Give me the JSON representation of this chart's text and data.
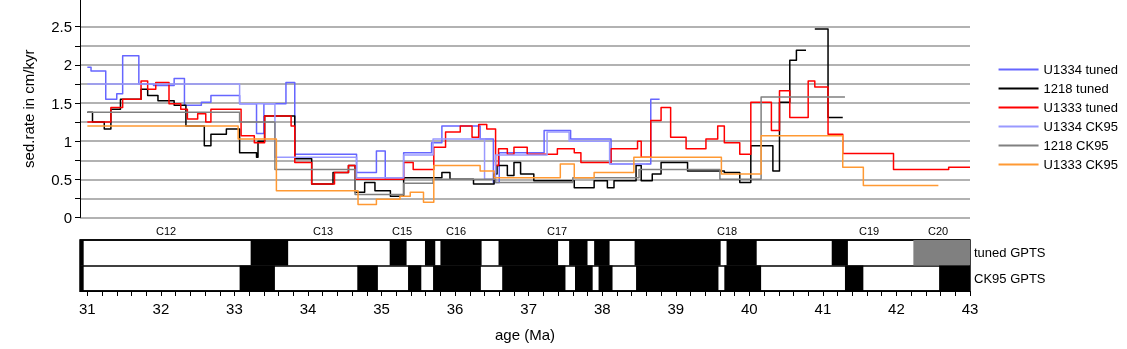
{
  "chart_data": [
    {
      "type": "step",
      "ylabel": "sed.rate in cm/kyr",
      "xlim": [
        30.9,
        43
      ],
      "ylim": [
        0,
        2.85
      ],
      "yticks": [
        0,
        {
          "value": 0.25,
          "label": null
        },
        0.5,
        {
          "value": 0.75,
          "label": null
        },
        1,
        {
          "value": 1.25,
          "label": null
        },
        1.5,
        {
          "value": 1.75,
          "label": null
        },
        2,
        {
          "value": 2.25,
          "label": null
        },
        2.5
      ],
      "grid": "y",
      "legend": "right",
      "tick_labels": "y",
      "series": [
        {
          "name": "U1334 tuned",
          "color": "#6666ff",
          "x": [
            31.0,
            31.05,
            31.25,
            31.4,
            31.48,
            31.7,
            31.9,
            32.18,
            32.32,
            32.55,
            32.68,
            33.07,
            33.3,
            33.4,
            33.7,
            33.82,
            34.66,
            34.93,
            35.05,
            35.3,
            35.68,
            35.82,
            36.34,
            36.52,
            36.6,
            37.21,
            37.57,
            38.12,
            38.66,
            38.78
          ],
          "values": [
            1.97,
            1.92,
            1.55,
            1.62,
            2.12,
            1.75,
            1.73,
            1.82,
            1.47,
            1.51,
            1.6,
            1.49,
            1.1,
            1.49,
            1.77,
            0.83,
            0.59,
            0.87,
            0.5,
            0.85,
            0.98,
            1.2,
            1.03,
            0.46,
            0.85,
            1.14,
            1.03,
            0.7,
            1.55,
            1.55
          ]
        },
        {
          "name": "1218 tuned",
          "color": "#000000",
          "x": [
            31.0,
            31.07,
            31.23,
            31.32,
            31.45,
            31.73,
            31.82,
            31.96,
            32.18,
            32.34,
            32.59,
            32.68,
            32.89,
            33.07,
            33.3,
            33.32,
            33.41,
            33.82,
            34.05,
            34.34,
            34.55,
            34.64,
            34.77,
            34.91,
            35.12,
            35.3,
            35.82,
            35.93,
            36.25,
            36.53,
            36.57,
            36.71,
            36.8,
            36.89,
            37.07,
            37.62,
            37.89,
            38.07,
            38.16,
            38.46,
            38.53,
            38.68,
            38.8,
            39.16,
            39.66,
            39.87,
            40.02,
            40.32,
            40.41,
            40.55,
            40.64,
            40.77,
            40.89,
            41.07,
            41.27
          ],
          "values": [
            1.38,
            1.25,
            1.16,
            1.42,
            1.55,
            1.68,
            1.6,
            1.53,
            1.47,
            1.2,
            0.94,
            1.09,
            1.16,
            0.85,
            0.79,
            1.0,
            1.33,
            0.77,
            0.44,
            0.59,
            0.68,
            0.33,
            0.46,
            0.35,
            0.28,
            0.52,
            0.59,
            0.5,
            0.44,
            0.57,
            0.68,
            0.55,
            0.72,
            0.57,
            0.48,
            0.39,
            0.48,
            0.39,
            0.48,
            0.68,
            0.48,
            0.57,
            0.72,
            0.61,
            0.59,
            0.46,
            0.94,
            0.61,
            1.51,
            2.06,
            2.19,
            null,
            2.47,
            1.31,
            1.31
          ]
        },
        {
          "name": "U1333 tuned",
          "color": "#ff0000",
          "x": [
            31.0,
            31.32,
            31.48,
            31.73,
            31.82,
            31.93,
            32.11,
            32.27,
            32.36,
            32.5,
            32.61,
            32.68,
            33.09,
            33.27,
            33.41,
            33.77,
            33.82,
            34.05,
            34.36,
            34.55,
            34.64,
            35.3,
            35.43,
            35.71,
            35.87,
            36.07,
            36.23,
            36.32,
            36.43,
            36.55,
            36.59,
            36.71,
            36.8,
            36.98,
            37.39,
            37.62,
            37.71,
            38.12,
            38.48,
            38.53,
            38.66,
            38.8,
            38.93,
            39.14,
            39.41,
            39.57,
            39.66,
            39.87,
            40.02,
            40.3,
            40.41,
            40.55,
            40.8,
            40.89,
            41.07,
            41.27,
            41.96,
            42.71,
            43.0
          ],
          "values": [
            1.25,
            1.44,
            1.55,
            1.79,
            1.68,
            1.77,
            1.49,
            1.42,
            1.29,
            1.36,
            1.25,
            1.42,
            1.07,
            0.98,
            1.33,
            1.2,
            0.72,
            0.44,
            0.59,
            0.68,
            0.5,
            0.72,
            0.63,
            0.92,
            1.12,
            1.2,
            1.05,
            1.22,
            1.16,
            0.68,
            0.9,
            0.83,
            0.92,
            0.83,
            0.9,
            0.85,
            0.72,
            0.9,
            1.0,
            0.79,
            1.27,
            1.44,
            1.05,
            0.9,
            1.03,
            1.2,
            0.98,
            0.83,
            1.51,
            1.14,
            1.66,
            1.31,
            1.79,
            1.71,
            1.09,
            0.84,
            0.63,
            0.66,
            0.66
          ]
        },
        {
          "name": "U1334 CK95",
          "color": "#9999ff",
          "x": [
            31.0,
            33.07,
            33.55,
            34.66,
            35.3,
            35.7,
            36.4,
            36.55,
            37.25,
            37.55,
            38.1,
            38.6
          ],
          "values": [
            1.75,
            1.49,
            0.79,
            0.52,
            0.82,
            1.03,
            0.5,
            0.82,
            1.12,
            1.0,
            0.7,
            0.7
          ]
        },
        {
          "name": "1218 CK95",
          "color": "#808080",
          "x": [
            31.0,
            33.07,
            33.55,
            34.64,
            35.3,
            35.7,
            36.55,
            37.6,
            38.5,
            39.6,
            40.16,
            41.3
          ],
          "values": [
            1.38,
            1.25,
            0.63,
            0.3,
            0.45,
            0.5,
            0.46,
            0.52,
            0.63,
            0.5,
            1.58,
            1.58
          ]
        },
        {
          "name": "U1333 CK95",
          "color": "#ff9933",
          "x": [
            31.0,
            33.05,
            33.57,
            34.68,
            34.93,
            35.25,
            35.39,
            35.57,
            35.71,
            36.34,
            36.53,
            37.43,
            37.62,
            37.89,
            38.43,
            39.62,
            40.16,
            41.27,
            41.55,
            42.57
          ],
          "values": [
            1.2,
            1.03,
            0.35,
            0.17,
            0.24,
            0.28,
            0.33,
            0.2,
            0.68,
            0.61,
            0.52,
            0.7,
            0.52,
            0.59,
            0.79,
            0.57,
            1.07,
            0.66,
            0.42,
            0.42
          ]
        }
      ]
    },
    {
      "type": "bar",
      "orientation": "horizontal",
      "categories": [
        "tuned GPTS",
        "CK95 GPTS"
      ],
      "xlabel": "age (Ma)",
      "xlim": [
        30.9,
        43
      ],
      "xticks": [
        31,
        {
          "value": 31.2,
          "label": null
        },
        {
          "value": 31.4,
          "label": null
        },
        {
          "value": 31.6,
          "label": null
        },
        {
          "value": 31.8,
          "label": null
        },
        32,
        {
          "value": 32.2,
          "label": null
        },
        {
          "value": 32.4,
          "label": null
        },
        {
          "value": 32.6,
          "label": null
        },
        {
          "value": 32.8,
          "label": null
        },
        33,
        {
          "value": 33.2,
          "label": null
        },
        {
          "value": 33.4,
          "label": null
        },
        {
          "value": 33.6,
          "label": null
        },
        {
          "value": 33.8,
          "label": null
        },
        34,
        {
          "value": 34.2,
          "label": null
        },
        {
          "value": 34.4,
          "label": null
        },
        {
          "value": 34.6,
          "label": null
        },
        {
          "value": 34.8,
          "label": null
        },
        35,
        {
          "value": 35.2,
          "label": null
        },
        {
          "value": 35.4,
          "label": null
        },
        {
          "value": 35.6,
          "label": null
        },
        {
          "value": 35.8,
          "label": null
        },
        36,
        {
          "value": 36.2,
          "label": null
        },
        {
          "value": 36.4,
          "label": null
        },
        {
          "value": 36.6,
          "label": null
        },
        {
          "value": 36.8,
          "label": null
        },
        37,
        {
          "value": 37.2,
          "label": null
        },
        {
          "value": 37.4,
          "label": null
        },
        {
          "value": 37.6,
          "label": null
        },
        {
          "value": 37.8,
          "label": null
        },
        38,
        {
          "value": 38.2,
          "label": null
        },
        {
          "value": 38.4,
          "label": null
        },
        {
          "value": 38.6,
          "label": null
        },
        {
          "value": 38.8,
          "label": null
        },
        39,
        {
          "value": 39.2,
          "label": null
        },
        {
          "value": 39.4,
          "label": null
        },
        {
          "value": 39.6,
          "label": null
        },
        {
          "value": 39.8,
          "label": null
        },
        40,
        {
          "value": 40.2,
          "label": null
        },
        {
          "value": 40.4,
          "label": null
        },
        {
          "value": 40.6,
          "label": null
        },
        {
          "value": 40.8,
          "label": null
        },
        41,
        {
          "value": 41.2,
          "label": null
        },
        {
          "value": 41.4,
          "label": null
        },
        {
          "value": 41.6,
          "label": null
        },
        {
          "value": 41.8,
          "label": null
        },
        42,
        {
          "value": 42.2,
          "label": null
        },
        {
          "value": 42.4,
          "label": null
        },
        {
          "value": 42.6,
          "label": null
        },
        {
          "value": 42.8,
          "label": null
        },
        43
      ],
      "annotations": [
        "C12",
        "C13",
        "C15",
        "C16",
        "C17",
        "C18",
        "C19",
        "C20"
      ],
      "series": [
        {
          "color": "#000000",
          "base": [
            30.9,
            30.9
          ],
          "values": [
            0.05,
            0.05
          ]
        },
        {
          "color": "#000000",
          "base": [
            33.22,
            33.07
          ],
          "values": [
            0.51,
            0.48
          ]
        },
        {
          "color": "#000000",
          "base": [
            35.11,
            34.67
          ],
          "values": [
            0.23,
            0.28
          ]
        },
        {
          "color": "#000000",
          "base": [
            35.59,
            35.36
          ],
          "values": [
            0.14,
            0.18
          ]
        },
        {
          "color": "#000000",
          "base": [
            35.8,
            35.7
          ],
          "values": [
            0.56,
            0.65
          ]
        },
        {
          "color": "#000000",
          "base": [
            36.59,
            36.64
          ],
          "values": [
            0.81,
            0.86
          ]
        },
        {
          "color": "#000000",
          "base": [
            37.55,
            37.63
          ],
          "values": [
            0.25,
            0.24
          ]
        },
        {
          "color": "#000000",
          "base": [
            37.89,
            37.95
          ],
          "values": [
            0.21,
            0.19
          ]
        },
        {
          "color": "#000000",
          "base": [
            38.44,
            38.46
          ],
          "values": [
            1.17,
            1.12
          ]
        },
        {
          "color": "#000000",
          "base": [
            39.69,
            39.66
          ],
          "values": [
            0.41,
            0.5
          ]
        },
        {
          "color": "#000000",
          "base": [
            41.12,
            41.3
          ],
          "values": [
            0.22,
            0.25
          ]
        },
        {
          "colors": [
            "#808080",
            "#000000"
          ],
          "base": [
            42.23,
            42.58
          ],
          "values": [
            0.77,
            0.42
          ]
        }
      ]
    }
  ]
}
